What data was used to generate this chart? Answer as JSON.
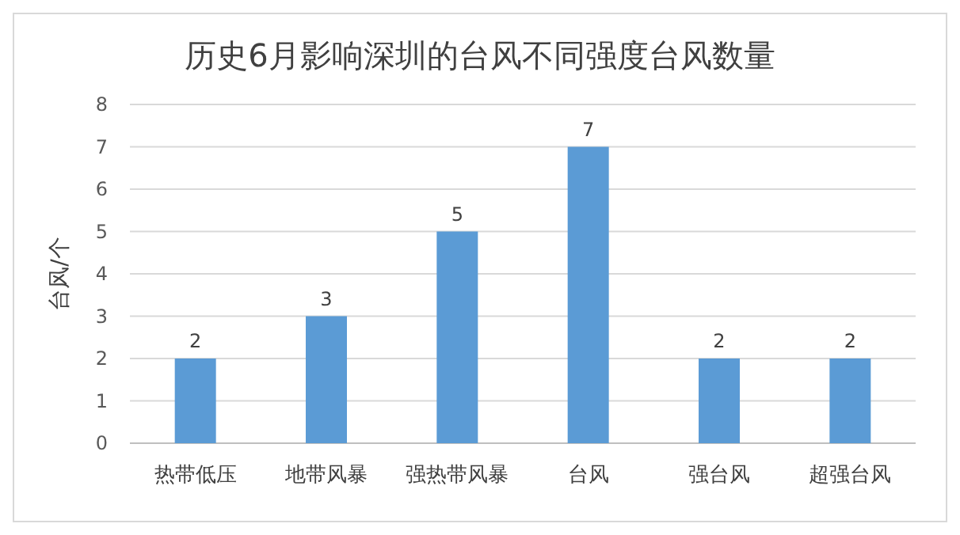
{
  "chart_data": {
    "type": "bar",
    "title": "历史6月影响深圳的台风不同强度台风数量",
    "ylabel": "台风/个",
    "categories": [
      "热带低压",
      "地带风暴",
      "强热带风暴",
      "台风",
      "强台风",
      "超强台风"
    ],
    "values": [
      2,
      3,
      5,
      7,
      2,
      2
    ],
    "color": "#5b9bd5",
    "ylim": [
      0,
      8
    ],
    "yticks": [
      0,
      1,
      2,
      3,
      4,
      5,
      6,
      7,
      8
    ],
    "grid": "y",
    "data_labels": true
  }
}
